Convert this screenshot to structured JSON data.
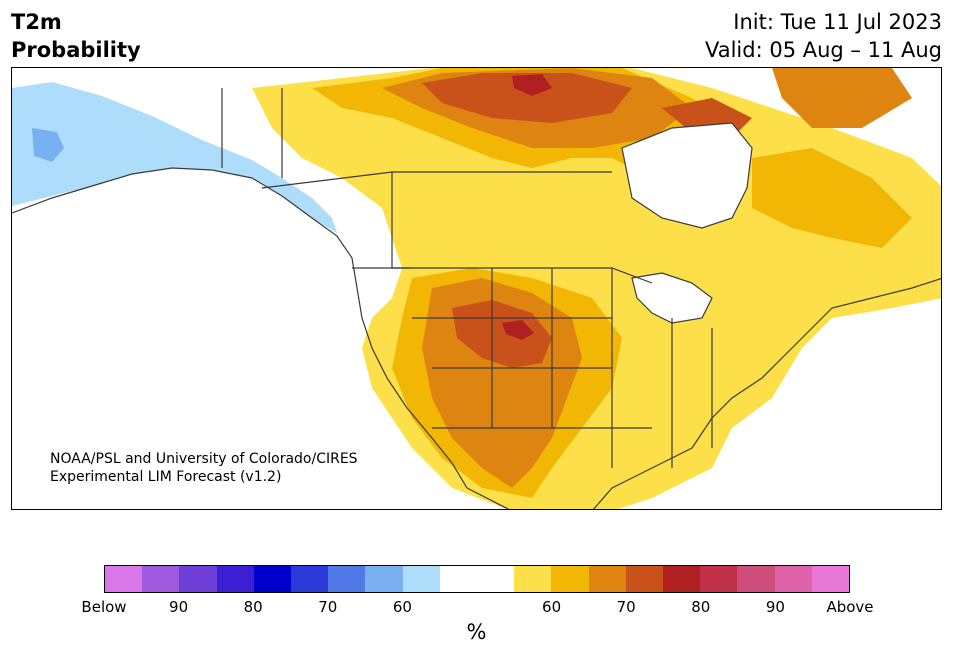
{
  "title": {
    "line1": "T2m",
    "line2": "Probability"
  },
  "init": {
    "line1": "Init: Tue 11 Jul 2023",
    "line2": "Valid: 05 Aug – 11 Aug"
  },
  "credit": {
    "line1": "NOAA/PSL and University of Colorado/CIRES",
    "line2": "Experimental LIM Forecast (v1.2)"
  },
  "colorbar": {
    "colors": [
      "#d977ea",
      "#a05ae0",
      "#6f3ed9",
      "#3a1fd4",
      "#0000cc",
      "#2a3ad8",
      "#5078e6",
      "#78b0f2",
      "#aedcfb",
      "#ffffff",
      "#ffffff",
      "#fddf4a",
      "#f2b705",
      "#de8410",
      "#c8521a",
      "#b02020",
      "#c03048",
      "#cf4d7a",
      "#dd62aa",
      "#e877d8"
    ],
    "ticks": [
      "Below",
      "90",
      "80",
      "70",
      "60",
      "60",
      "70",
      "80",
      "90",
      "Above"
    ],
    "unit": "%"
  },
  "map_colors": {
    "cool_light": "#aedcfb",
    "cool_mid": "#78b0f2",
    "warm_60": "#fddf4a",
    "warm_70": "#f2b705",
    "warm_80": "#de8410",
    "warm_90": "#c8521a",
    "warm_max": "#b02020",
    "coast": "#3a3a3a"
  }
}
